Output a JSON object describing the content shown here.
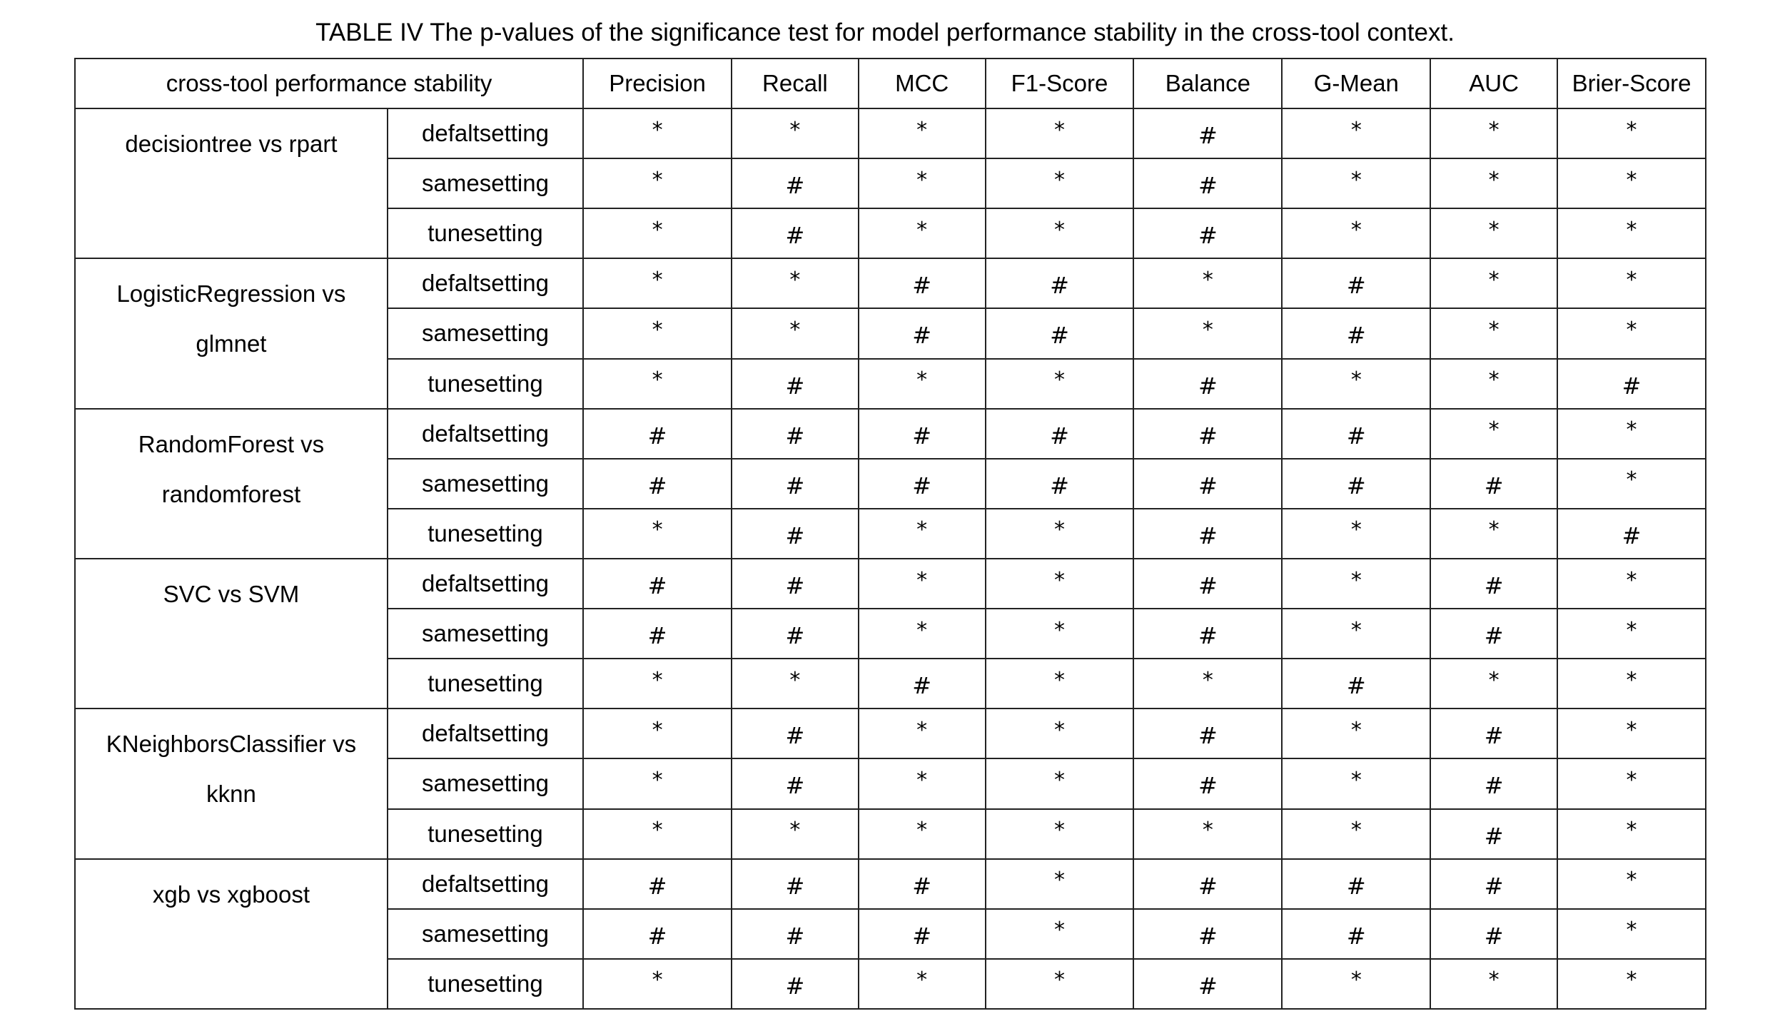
{
  "caption": "TABLE IV The p-values of the significance test for model performance stability in the cross-tool context.",
  "table": {
    "header": {
      "group_label": "cross-tool performance stability",
      "metrics": [
        "Precision",
        "Recall",
        "MCC",
        "F1-Score",
        "Balance",
        "G-Mean",
        "AUC",
        "Brier-Score"
      ]
    },
    "groups": [
      {
        "pair": "decisiontree vs rpart",
        "rows": [
          {
            "setting": "defaltsetting",
            "values": [
              "*",
              "*",
              "*",
              "*",
              "#",
              "*",
              "*",
              "*"
            ]
          },
          {
            "setting": "samesetting",
            "values": [
              "*",
              "#",
              "*",
              "*",
              "#",
              "*",
              "*",
              "*"
            ]
          },
          {
            "setting": "tunesetting",
            "values": [
              "*",
              "#",
              "*",
              "*",
              "#",
              "*",
              "*",
              "*"
            ]
          }
        ]
      },
      {
        "pair": "LogisticRegression vs glmnet",
        "rows": [
          {
            "setting": "defaltsetting",
            "values": [
              "*",
              "*",
              "#",
              "#",
              "*",
              "#",
              "*",
              "*"
            ]
          },
          {
            "setting": "samesetting",
            "values": [
              "*",
              "*",
              "#",
              "#",
              "*",
              "#",
              "*",
              "*"
            ]
          },
          {
            "setting": "tunesetting",
            "values": [
              "*",
              "#",
              "*",
              "*",
              "#",
              "*",
              "*",
              "#"
            ]
          }
        ]
      },
      {
        "pair": "RandomForest vs randomforest",
        "rows": [
          {
            "setting": "defaltsetting",
            "values": [
              "#",
              "#",
              "#",
              "#",
              "#",
              "#",
              "*",
              "*"
            ]
          },
          {
            "setting": "samesetting",
            "values": [
              "#",
              "#",
              "#",
              "#",
              "#",
              "#",
              "#",
              "*"
            ]
          },
          {
            "setting": "tunesetting",
            "values": [
              "*",
              "#",
              "*",
              "*",
              "#",
              "*",
              "*",
              "#"
            ]
          }
        ]
      },
      {
        "pair": "SVC vs SVM",
        "rows": [
          {
            "setting": "defaltsetting",
            "values": [
              "#",
              "#",
              "*",
              "*",
              "#",
              "*",
              "#",
              "*"
            ]
          },
          {
            "setting": "samesetting",
            "values": [
              "#",
              "#",
              "*",
              "*",
              "#",
              "*",
              "#",
              "*"
            ]
          },
          {
            "setting": "tunesetting",
            "values": [
              "*",
              "*",
              "#",
              "*",
              "*",
              "#",
              "*",
              "*"
            ]
          }
        ]
      },
      {
        "pair": "KNeighborsClassifier vs kknn",
        "rows": [
          {
            "setting": "defaltsetting",
            "values": [
              "*",
              "#",
              "*",
              "*",
              "#",
              "*",
              "#",
              "*"
            ]
          },
          {
            "setting": "samesetting",
            "values": [
              "*",
              "#",
              "*",
              "*",
              "#",
              "*",
              "#",
              "*"
            ]
          },
          {
            "setting": "tunesetting",
            "values": [
              "*",
              "*",
              "*",
              "*",
              "*",
              "*",
              "#",
              "*"
            ]
          }
        ]
      },
      {
        "pair": "xgb vs xgboost",
        "rows": [
          {
            "setting": "defaltsetting",
            "values": [
              "#",
              "#",
              "#",
              "*",
              "#",
              "#",
              "#",
              "*"
            ]
          },
          {
            "setting": "samesetting",
            "values": [
              "#",
              "#",
              "#",
              "*",
              "#",
              "#",
              "#",
              "*"
            ]
          },
          {
            "setting": "tunesetting",
            "values": [
              "*",
              "#",
              "*",
              "*",
              "#",
              "*",
              "*",
              "*"
            ]
          }
        ]
      }
    ]
  }
}
